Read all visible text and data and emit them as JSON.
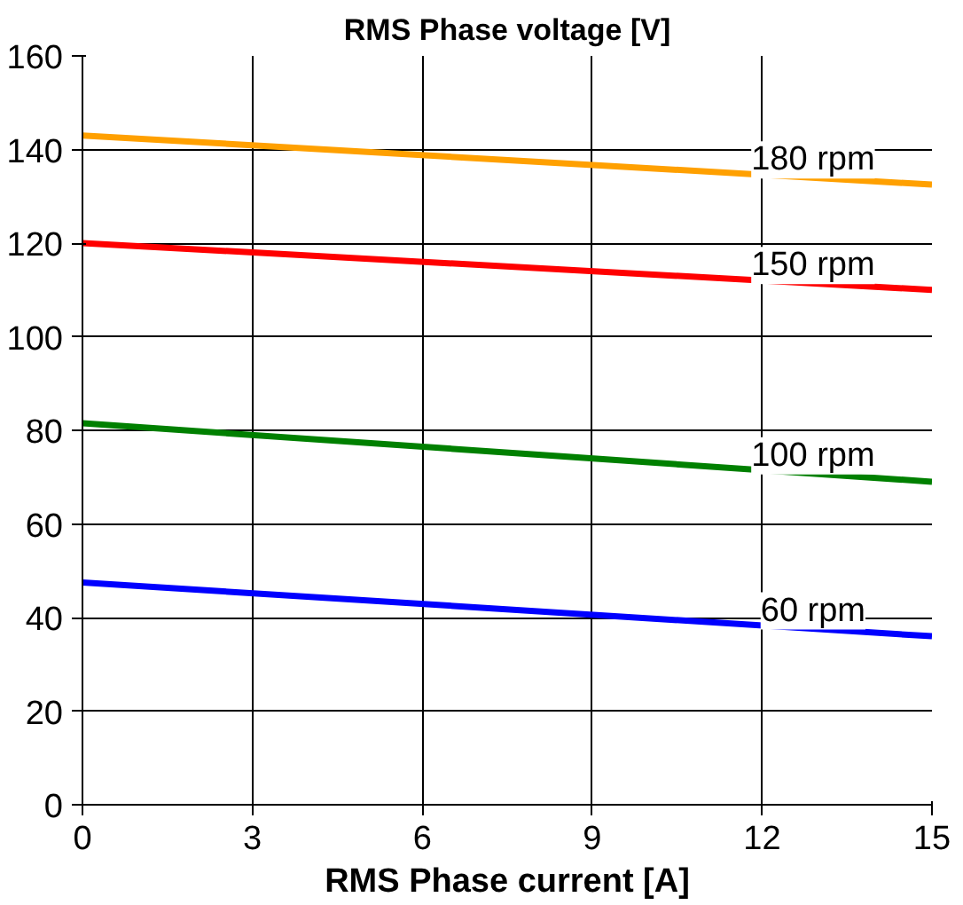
{
  "chart_data": {
    "type": "line",
    "title": "RMS Phase voltage [V]",
    "xlabel": "RMS Phase current [A]",
    "x": [
      0,
      15
    ],
    "series": [
      {
        "name": "180 rpm",
        "color": "#ffa000",
        "values": [
          143,
          132.5
        ]
      },
      {
        "name": "150 rpm",
        "color": "#ff0000",
        "values": [
          120,
          110
        ]
      },
      {
        "name": "100 rpm",
        "color": "#008000",
        "values": [
          81.5,
          69
        ]
      },
      {
        "name": "60 rpm",
        "color": "#0000ff",
        "values": [
          47.5,
          36
        ]
      }
    ],
    "xlim": [
      0,
      15
    ],
    "ylim": [
      0,
      160
    ],
    "xticks": [
      0,
      3,
      6,
      9,
      12,
      15
    ],
    "yticks": [
      0,
      20,
      40,
      60,
      80,
      100,
      120,
      140,
      160
    ],
    "grid": true,
    "marker": "none",
    "line_style": "solid"
  }
}
